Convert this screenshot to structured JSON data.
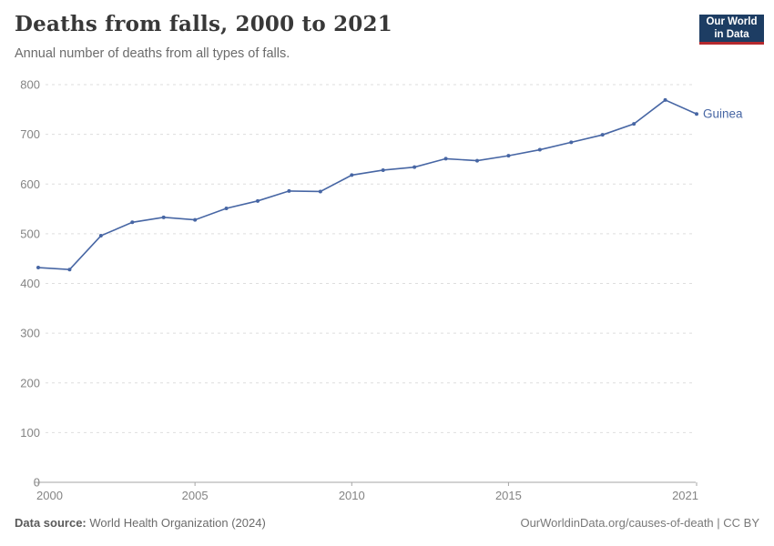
{
  "header": {
    "title": "Deaths from falls, 2000 to 2021",
    "subtitle": "Annual number of deaths from all types of falls."
  },
  "logo": {
    "line1": "Our World",
    "line2": "in Data",
    "bg_color": "#1d3d63",
    "accent_color": "#b5292e"
  },
  "footer": {
    "source_label": "Data source:",
    "source_value": "World Health Organization (2024)",
    "attribution": "OurWorldinData.org/causes-of-death | CC BY"
  },
  "chart_data": {
    "type": "line",
    "title": "Deaths from falls, 2000 to 2021",
    "xlabel": "",
    "ylabel": "",
    "xlim": [
      2000,
      2021
    ],
    "ylim": [
      0,
      800
    ],
    "grid": "horizontal-dashed",
    "legend_position": "end-of-line-label",
    "xticks": [
      2000,
      2005,
      2010,
      2015,
      2021
    ],
    "yticks": [
      0,
      100,
      200,
      300,
      400,
      500,
      600,
      700,
      800
    ],
    "colors": {
      "gridline": "#dedede",
      "axis": "#a5a5a5",
      "tick_label": "#848484"
    },
    "series": [
      {
        "name": "Guinea",
        "color": "#4766a4",
        "x": [
          2000,
          2001,
          2002,
          2003,
          2004,
          2005,
          2006,
          2007,
          2008,
          2009,
          2010,
          2011,
          2012,
          2013,
          2014,
          2015,
          2016,
          2017,
          2018,
          2019,
          2020,
          2021
        ],
        "values": [
          432,
          428,
          496,
          523,
          533,
          528,
          551,
          566,
          586,
          585,
          618,
          628,
          634,
          651,
          647,
          657,
          669,
          684,
          699,
          721,
          769,
          741
        ]
      }
    ]
  }
}
